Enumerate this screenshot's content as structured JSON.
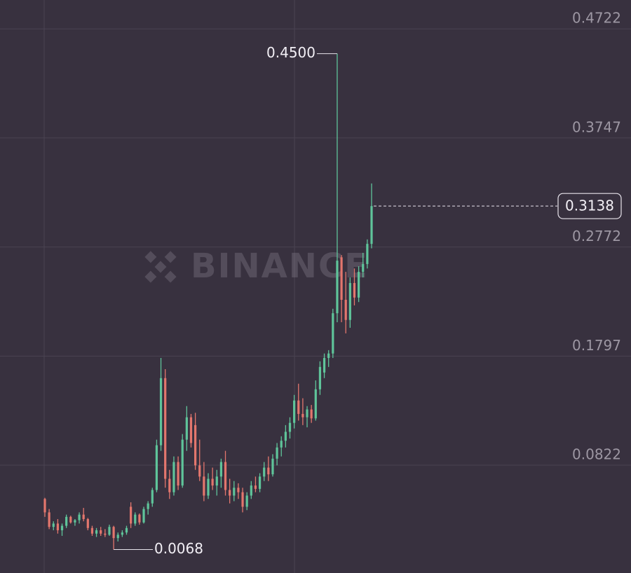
{
  "chart_data": {
    "type": "candlestick",
    "watermark": "BINANCE",
    "ylim": [
      -0.0142,
      0.498
    ],
    "yticks": [
      0.0822,
      0.1797,
      0.2772,
      0.3747,
      0.4722
    ],
    "grid": true,
    "up_color": "#5fc49a",
    "down_color": "#e3766d",
    "last_price": 0.3138,
    "high_label": {
      "value": 0.45,
      "label": "0.4500"
    },
    "low_label": 0.0068,
    "open": [
      0.052,
      0.04,
      0.027,
      0.03,
      0.024,
      0.028,
      0.036,
      0.031,
      0.033,
      0.038,
      0.034,
      0.026,
      0.021,
      0.024,
      0.021,
      0.02,
      0.027,
      0.017,
      0.02,
      0.022,
      0.045,
      0.03,
      0.038,
      0.031,
      0.043,
      0.048,
      0.06,
      0.1,
      0.16,
      0.07,
      0.058,
      0.085,
      0.064,
      0.105,
      0.125,
      0.118,
      0.082,
      0.072,
      0.055,
      0.07,
      0.064,
      0.072,
      0.085,
      0.06,
      0.055,
      0.062,
      0.058,
      0.045,
      0.055,
      0.064,
      0.061,
      0.072,
      0.08,
      0.074,
      0.088,
      0.098,
      0.104,
      0.112,
      0.12,
      0.14,
      0.128,
      0.125,
      0.132,
      0.124,
      0.15,
      0.165,
      0.178,
      0.182,
      0.218,
      0.268,
      0.23,
      0.212,
      0.245,
      0.232,
      0.255,
      0.262,
      0.28
    ],
    "high": [
      0.053,
      0.043,
      0.032,
      0.034,
      0.03,
      0.038,
      0.037,
      0.034,
      0.04,
      0.044,
      0.035,
      0.028,
      0.026,
      0.027,
      0.025,
      0.029,
      0.028,
      0.022,
      0.024,
      0.028,
      0.049,
      0.04,
      0.039,
      0.045,
      0.05,
      0.062,
      0.105,
      0.178,
      0.168,
      0.078,
      0.09,
      0.09,
      0.11,
      0.135,
      0.128,
      0.129,
      0.105,
      0.085,
      0.075,
      0.08,
      0.078,
      0.088,
      0.095,
      0.07,
      0.068,
      0.066,
      0.062,
      0.058,
      0.068,
      0.072,
      0.075,
      0.085,
      0.09,
      0.092,
      0.102,
      0.108,
      0.118,
      0.125,
      0.145,
      0.155,
      0.142,
      0.135,
      0.136,
      0.158,
      0.175,
      0.182,
      0.185,
      0.222,
      0.45,
      0.27,
      0.255,
      0.25,
      0.258,
      0.26,
      0.272,
      0.284,
      0.334
    ],
    "low": [
      0.036,
      0.025,
      0.024,
      0.021,
      0.019,
      0.026,
      0.03,
      0.028,
      0.03,
      0.032,
      0.024,
      0.019,
      0.018,
      0.019,
      0.018,
      0.019,
      0.0068,
      0.014,
      0.018,
      0.02,
      0.026,
      0.028,
      0.029,
      0.03,
      0.038,
      0.045,
      0.058,
      0.095,
      0.062,
      0.052,
      0.055,
      0.06,
      0.062,
      0.095,
      0.098,
      0.078,
      0.068,
      0.05,
      0.052,
      0.06,
      0.055,
      0.062,
      0.055,
      0.048,
      0.05,
      0.052,
      0.04,
      0.042,
      0.052,
      0.058,
      0.058,
      0.068,
      0.068,
      0.072,
      0.082,
      0.09,
      0.098,
      0.106,
      0.115,
      0.122,
      0.118,
      0.116,
      0.12,
      0.122,
      0.145,
      0.16,
      0.17,
      0.178,
      0.21,
      0.21,
      0.2,
      0.205,
      0.225,
      0.228,
      0.25,
      0.258,
      0.276
    ],
    "close": [
      0.04,
      0.027,
      0.03,
      0.024,
      0.028,
      0.036,
      0.031,
      0.033,
      0.038,
      0.034,
      0.026,
      0.021,
      0.024,
      0.021,
      0.02,
      0.027,
      0.017,
      0.02,
      0.022,
      0.026,
      0.03,
      0.038,
      0.031,
      0.043,
      0.048,
      0.06,
      0.1,
      0.16,
      0.07,
      0.058,
      0.085,
      0.064,
      0.105,
      0.125,
      0.102,
      0.082,
      0.072,
      0.055,
      0.07,
      0.064,
      0.072,
      0.085,
      0.06,
      0.055,
      0.062,
      0.058,
      0.045,
      0.055,
      0.064,
      0.061,
      0.072,
      0.08,
      0.074,
      0.088,
      0.098,
      0.104,
      0.112,
      0.12,
      0.14,
      0.128,
      0.125,
      0.132,
      0.124,
      0.15,
      0.17,
      0.178,
      0.182,
      0.218,
      0.265,
      0.23,
      0.212,
      0.245,
      0.232,
      0.255,
      0.262,
      0.28,
      0.3138
    ]
  }
}
